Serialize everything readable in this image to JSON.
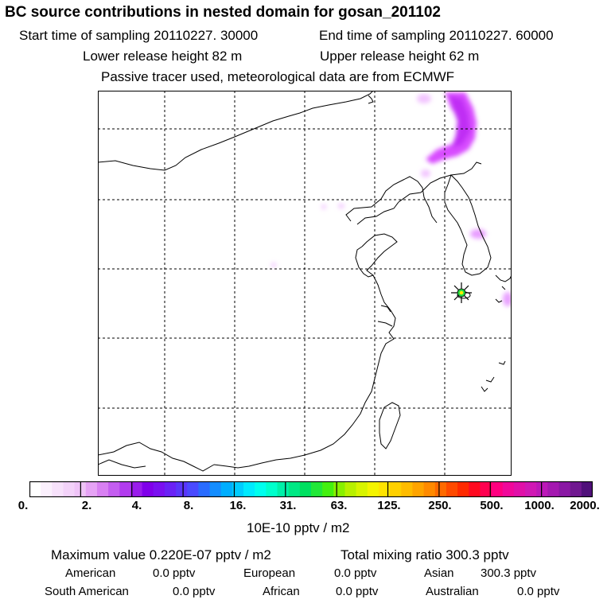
{
  "header": {
    "title": "BC  source contributions in nested domain for gosan_201102",
    "start_time": "Start time of sampling 20110227. 30000",
    "end_time": "End time of sampling 20110227. 60000",
    "lower_release": "Lower release height   82 m",
    "upper_release": "Upper release height   62 m",
    "note": "Passive tracer used, meteorological data are from ECMWF"
  },
  "map": {
    "receptor_marker": "asterisk-star-icon",
    "plume_color": "#e040ff",
    "grid_style": "dashed"
  },
  "colorbar": {
    "colors": [
      "#ffffff",
      "#fbf0fd",
      "#f7e1fb",
      "#f3d2f9",
      "#efc3f7",
      "#e6a3f5",
      "#d880f2",
      "#c45ef0",
      "#b23cee",
      "#9a1cec",
      "#8000ea",
      "#7a10f0",
      "#6a22f5",
      "#5a36fa",
      "#4a4aff",
      "#2a6cff",
      "#148dff",
      "#00aeff",
      "#00ccff",
      "#00eaff",
      "#00ffee",
      "#00ffcc",
      "#00f0a8",
      "#00e884",
      "#00e060",
      "#22e838",
      "#44f010",
      "#88f000",
      "#b8f000",
      "#d8f400",
      "#f4f400",
      "#ffe400",
      "#ffd000",
      "#ffbc00",
      "#ffa400",
      "#ff8a00",
      "#ff6a00",
      "#ff4a00",
      "#ff2a00",
      "#ff0a20",
      "#ff0050",
      "#ff0080",
      "#f0089a",
      "#e010a8",
      "#d018b4",
      "#bc18b8",
      "#a418b0",
      "#8a18a4",
      "#701890",
      "#50107a"
    ],
    "ticks": [
      "0.",
      "2.",
      "4.",
      "8.",
      "16.",
      "31.",
      "63.",
      "125.",
      "250.",
      "500.",
      "1000.",
      "2000."
    ],
    "unit": "10E-10 pptv / m2"
  },
  "stats": {
    "maximum": "Maximum value  0.220E-07 pptv / m2",
    "total": "Total mixing ratio      300.3 pptv",
    "regions": [
      {
        "name": "American",
        "value": "0.0 pptv"
      },
      {
        "name": "European",
        "value": "0.0 pptv"
      },
      {
        "name": "Asian",
        "value": "300.3 pptv"
      },
      {
        "name": "South American",
        "value": "0.0 pptv"
      },
      {
        "name": "African",
        "value": "0.0 pptv"
      },
      {
        "name": "Australian",
        "value": "0.0 pptv"
      }
    ]
  }
}
